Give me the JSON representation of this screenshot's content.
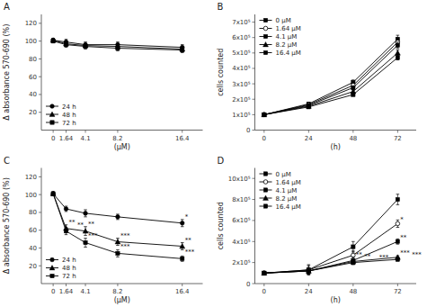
{
  "chart_data": [
    {
      "type": "line",
      "title": "A",
      "x_label": "(μM)",
      "y_label": "Δ absorbance 570-690 (%)",
      "x": [
        0,
        1.64,
        4.1,
        8.2,
        16.4
      ],
      "xlim": [
        -1.5,
        19
      ],
      "xticks": [
        0,
        1.64,
        4.1,
        8.2,
        16.4
      ],
      "ylim": [
        0,
        130
      ],
      "yticks": [
        20,
        40,
        60,
        80,
        100,
        120
      ],
      "color": "black",
      "legend": "lower left",
      "series": [
        {
          "name": "24 h",
          "marker": "circle",
          "values": [
            101,
            99,
            96,
            96,
            93
          ],
          "errors": [
            2,
            3,
            3,
            3,
            3
          ]
        },
        {
          "name": "48 h",
          "marker": "triangle",
          "values": [
            101,
            97,
            95,
            94,
            91
          ],
          "errors": [
            2,
            3,
            2,
            3,
            3
          ]
        },
        {
          "name": "72 h",
          "marker": "square",
          "values": [
            100,
            96,
            94,
            92,
            90
          ],
          "errors": [
            2,
            3,
            3,
            3,
            3
          ]
        }
      ]
    },
    {
      "type": "line",
      "title": "B",
      "x_label": "(h)",
      "y_label": "cells counted",
      "x": [
        0,
        24,
        48,
        72
      ],
      "xlim": [
        -5,
        82
      ],
      "xticks": [
        0,
        24,
        48,
        72
      ],
      "ylim": [
        0,
        750000
      ],
      "yticks": [
        0,
        {
          "value": 100000,
          "label": "1x10⁵"
        },
        {
          "value": 200000,
          "label": "2x10⁵"
        },
        {
          "value": 300000,
          "label": "3x10⁵"
        },
        {
          "value": 400000,
          "label": "4x10⁵"
        },
        {
          "value": 500000,
          "label": "5x10⁵"
        },
        {
          "value": 600000,
          "label": "6x10⁵"
        },
        {
          "value": 700000,
          "label": "7x10⁵"
        }
      ],
      "color": "black",
      "legend": "upper left",
      "series": [
        {
          "name": "0 μM",
          "marker": "square",
          "values": [
            100000,
            170000,
            310000,
            590000
          ],
          "errors": [
            5000,
            10000,
            15000,
            25000
          ]
        },
        {
          "name": "1.64 μM",
          "marker": "open-circle",
          "values": [
            100000,
            165000,
            290000,
            570000
          ],
          "errors": [
            5000,
            10000,
            12000,
            20000
          ]
        },
        {
          "name": "4.1 μM",
          "marker": "square",
          "values": [
            100000,
            160000,
            275000,
            550000
          ],
          "errors": [
            5000,
            10000,
            12000,
            20000
          ]
        },
        {
          "name": "8.2 μM",
          "marker": "triangle",
          "values": [
            100000,
            155000,
            250000,
            500000
          ],
          "errors": [
            5000,
            10000,
            10000,
            20000
          ]
        },
        {
          "name": "16.4 μM",
          "marker": "square",
          "values": [
            100000,
            150000,
            230000,
            470000
          ],
          "errors": [
            5000,
            10000,
            10000,
            15000
          ]
        }
      ]
    },
    {
      "type": "line",
      "title": "C",
      "x_label": "(μM)",
      "y_label": "Δ absorbance 570-690 (%)",
      "x": [
        0,
        1.64,
        4.1,
        8.2,
        16.4
      ],
      "xlim": [
        -1.5,
        19
      ],
      "xticks": [
        0,
        1.64,
        4.1,
        8.2,
        16.4
      ],
      "ylim": [
        0,
        130
      ],
      "yticks": [
        20,
        40,
        60,
        80,
        100,
        120
      ],
      "color": "black",
      "legend": "lower left",
      "series": [
        {
          "name": "24 h",
          "marker": "circle",
          "values": [
            101,
            84,
            79,
            75,
            68
          ],
          "errors": [
            2,
            3,
            4,
            3,
            4
          ]
        },
        {
          "name": "48 h",
          "marker": "triangle",
          "values": [
            101,
            62,
            59,
            47,
            42
          ],
          "errors": [
            2,
            4,
            5,
            4,
            4
          ]
        },
        {
          "name": "72 h",
          "marker": "square",
          "values": [
            101,
            59,
            46,
            34,
            28
          ],
          "errors": [
            2,
            4,
            5,
            4,
            3
          ]
        }
      ],
      "annotations": [
        {
          "x": 1.64,
          "y": 66,
          "text": "**"
        },
        {
          "x": 1.64,
          "y": 63,
          "text": "**"
        },
        {
          "x": 4.1,
          "y": 64,
          "text": "**"
        },
        {
          "x": 4.1,
          "y": 51,
          "text": "***"
        },
        {
          "x": 8.2,
          "y": 51,
          "text": "***"
        },
        {
          "x": 8.2,
          "y": 38,
          "text": "***"
        },
        {
          "x": 16.4,
          "y": 72,
          "text": "*"
        },
        {
          "x": 16.4,
          "y": 46,
          "text": "**"
        },
        {
          "x": 16.4,
          "y": 32,
          "text": "***"
        }
      ]
    },
    {
      "type": "line",
      "title": "D",
      "x_label": "(h)",
      "y_label": "cells counted",
      "x": [
        0,
        24,
        48,
        72
      ],
      "xlim": [
        -5,
        82
      ],
      "xticks": [
        0,
        24,
        48,
        72
      ],
      "ylim": [
        0,
        1100000
      ],
      "yticks": [
        0,
        {
          "value": 200000,
          "label": "2x10⁵"
        },
        {
          "value": 400000,
          "label": "4x10⁵"
        },
        {
          "value": 600000,
          "label": "6x10⁵"
        },
        {
          "value": 800000,
          "label": "8x10⁵"
        },
        {
          "value": 1000000,
          "label": "10x10⁵"
        }
      ],
      "color": "black",
      "legend": "upper left",
      "series": [
        {
          "name": "0 μM",
          "marker": "square",
          "values": [
            100000,
            130000,
            350000,
            800000
          ],
          "errors": [
            5000,
            50000,
            50000,
            50000
          ]
        },
        {
          "name": "1.64 μM",
          "marker": "open-circle",
          "values": [
            100000,
            130000,
            270000,
            570000
          ],
          "errors": [
            5000,
            40000,
            40000,
            35000
          ]
        },
        {
          "name": "4.1 μM",
          "marker": "square",
          "values": [
            100000,
            120000,
            220000,
            400000
          ],
          "errors": [
            5000,
            30000,
            30000,
            25000
          ]
        },
        {
          "name": "8.2 μM",
          "marker": "triangle",
          "values": [
            100000,
            120000,
            210000,
            250000
          ],
          "errors": [
            5000,
            30000,
            25000,
            15000
          ]
        },
        {
          "name": "16.4 μM",
          "marker": "square",
          "values": [
            100000,
            120000,
            200000,
            230000
          ],
          "errors": [
            5000,
            30000,
            20000,
            15000
          ]
        }
      ],
      "annotations": [
        {
          "x": 72,
          "y": 585000,
          "text": "*"
        },
        {
          "x": 72,
          "y": 415000,
          "text": "**"
        },
        {
          "x": 72,
          "y": 265000,
          "text": "***"
        },
        {
          "x": 72,
          "y": 245000,
          "text": "***"
        },
        {
          "x": 48,
          "y": 250000,
          "text": "**"
        },
        {
          "x": 48,
          "y": 230000,
          "text": "**"
        },
        {
          "x": 48,
          "y": 220000,
          "text": "***"
        }
      ]
    }
  ]
}
